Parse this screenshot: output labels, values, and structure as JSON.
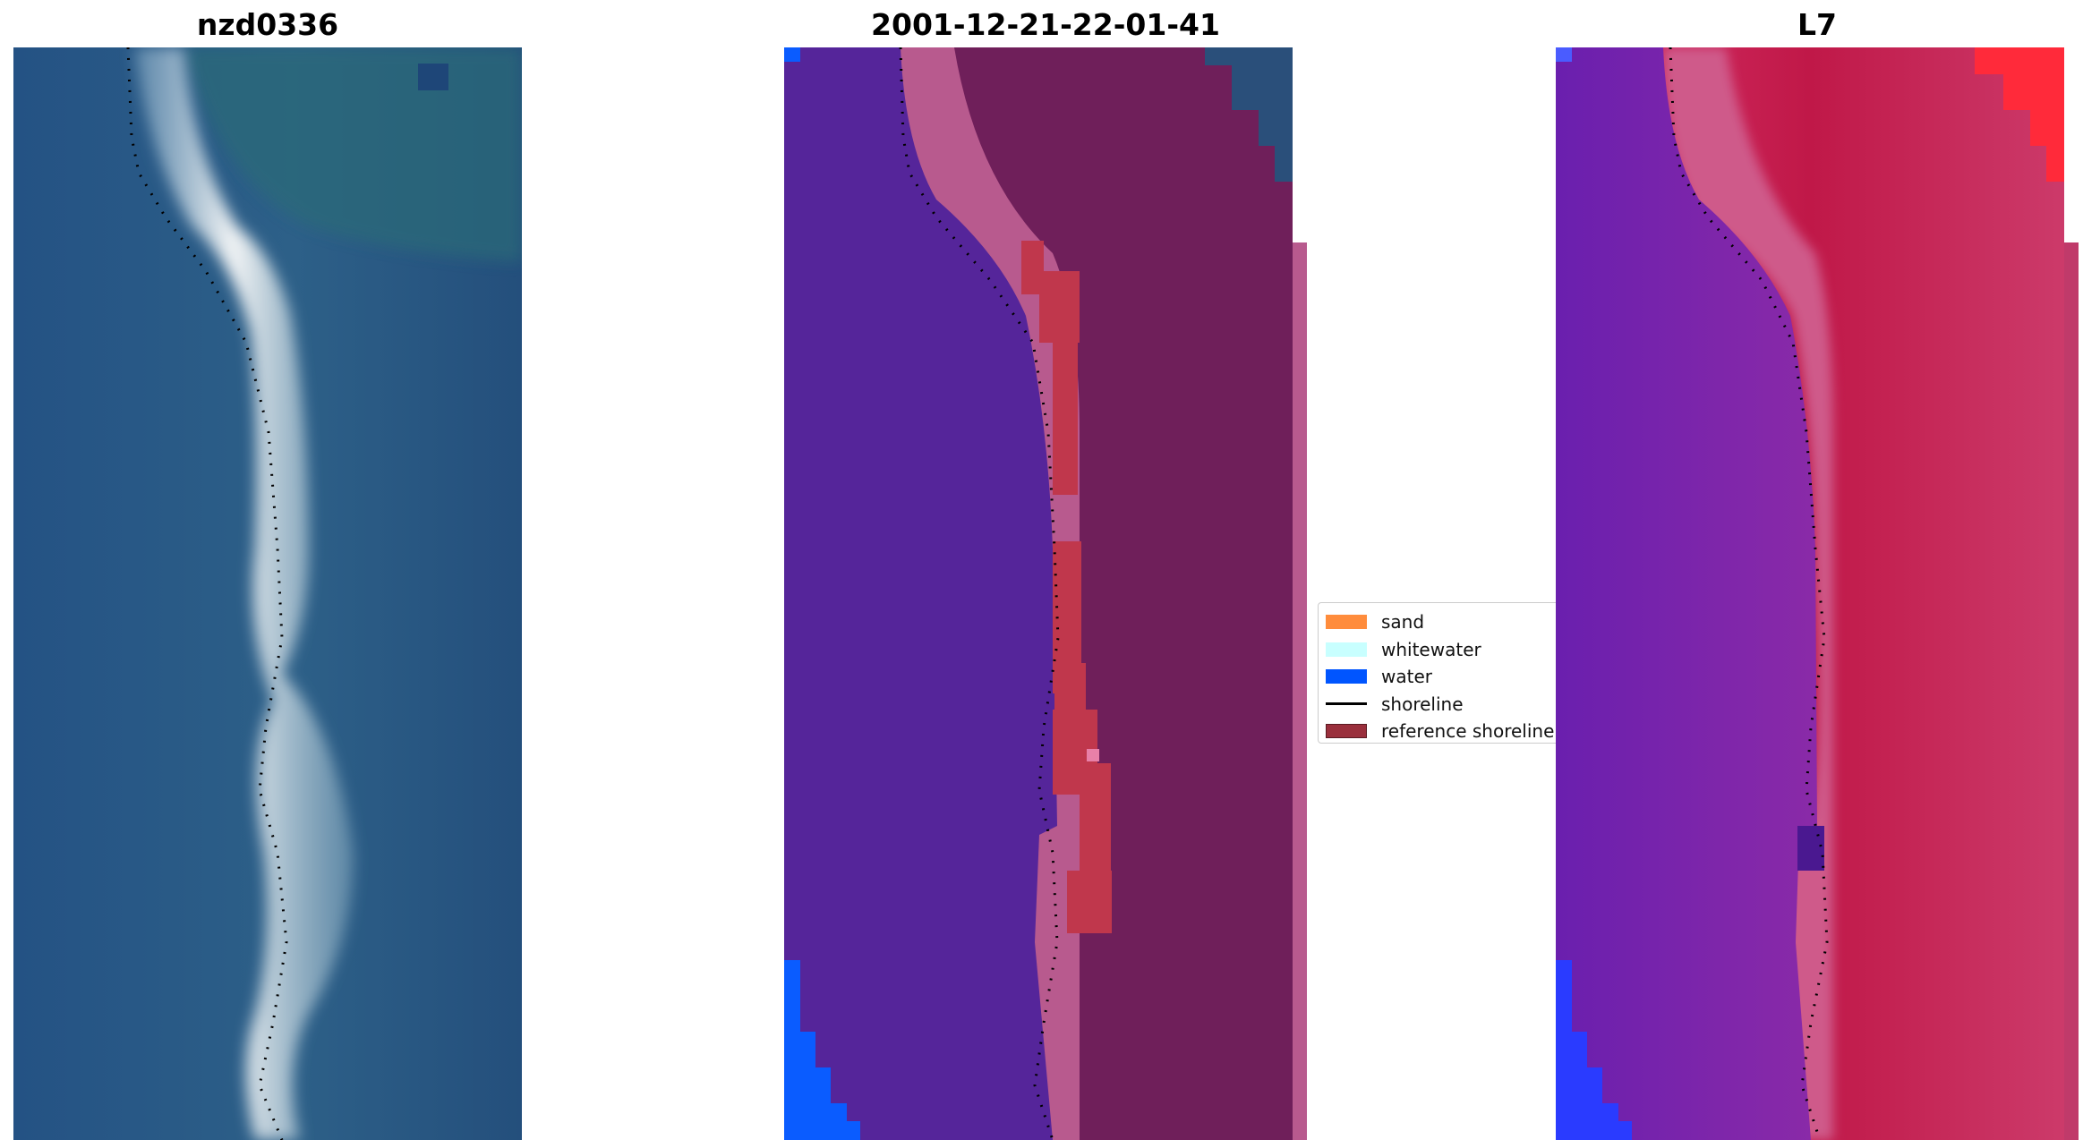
{
  "panels": [
    {
      "title": "nzd0336",
      "kind": "rgb"
    },
    {
      "title": "2001-12-21-22-01-41",
      "kind": "classified"
    },
    {
      "title": "L7",
      "kind": "index"
    }
  ],
  "legend": {
    "items": [
      {
        "label": "sand",
        "color": "#ff8c3c",
        "type": "patch"
      },
      {
        "label": "whitewater",
        "color": "#c8ffff",
        "type": "patch"
      },
      {
        "label": "water",
        "color": "#0055ff",
        "type": "patch"
      },
      {
        "label": "shoreline",
        "color": "#000000",
        "type": "line"
      },
      {
        "label": "reference shoreline",
        "color": "#9a2f3c",
        "type": "patch"
      }
    ]
  },
  "colors": {
    "rgb_water": "#28578a",
    "rgb_land": "#2a5f78",
    "rgb_beach": "#e8ecef",
    "class_water": "#55259a",
    "class_land": "#6f1f5a",
    "class_sand_edge": "#b85a8e",
    "class_ref_shoreline": "#c0374c",
    "class_open_water": "#0a5cff",
    "index_water": "#7b1fb0",
    "index_land": "#c01848",
    "index_edge": "#cf5a8a",
    "index_open_water": "#2a3bff"
  }
}
